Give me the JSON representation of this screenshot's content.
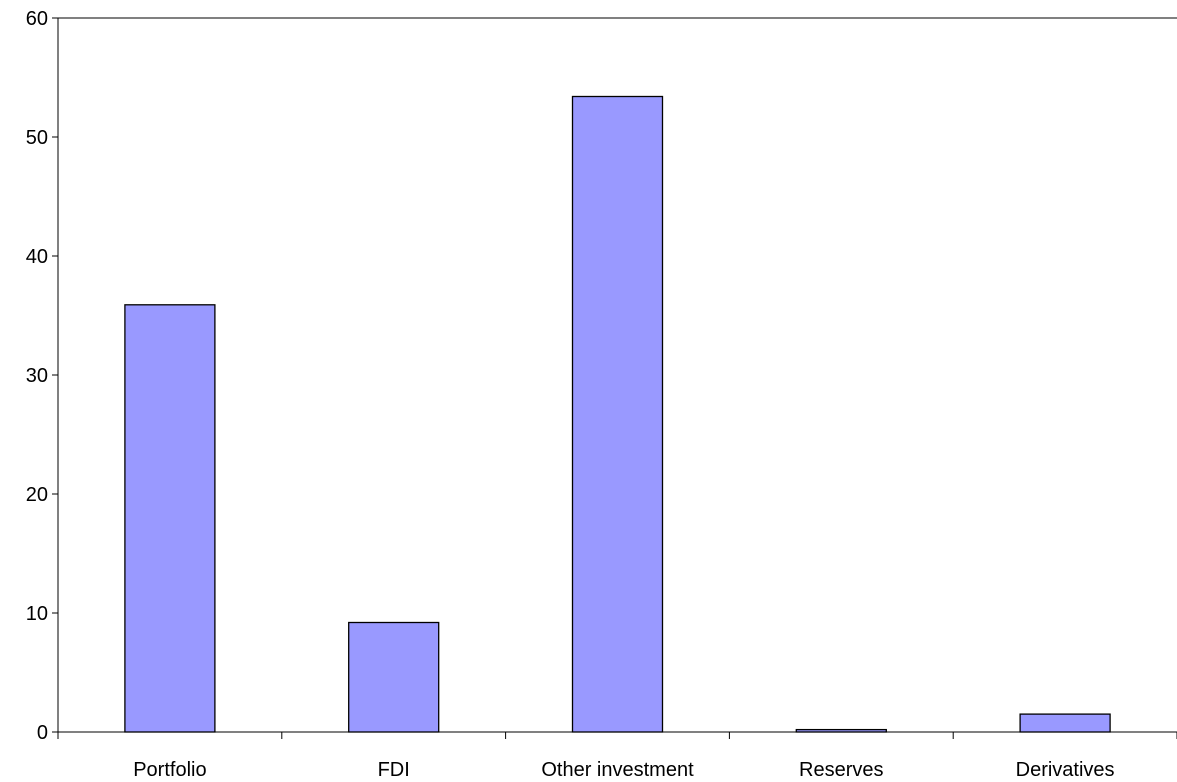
{
  "chart_data": {
    "type": "bar",
    "title": "",
    "xlabel": "",
    "ylabel": "",
    "categories": [
      "Portfolio",
      "FDI",
      "Other investment",
      "Reserves",
      "Derivatives"
    ],
    "values": [
      35.9,
      9.2,
      53.4,
      0.2,
      1.5
    ],
    "ylim": [
      0,
      60
    ],
    "yticks": [
      0,
      10,
      20,
      30,
      40,
      50,
      60
    ],
    "grid": false,
    "legend": "none",
    "bar_color": "#9999ff",
    "bar_edge_color": "#000000"
  }
}
